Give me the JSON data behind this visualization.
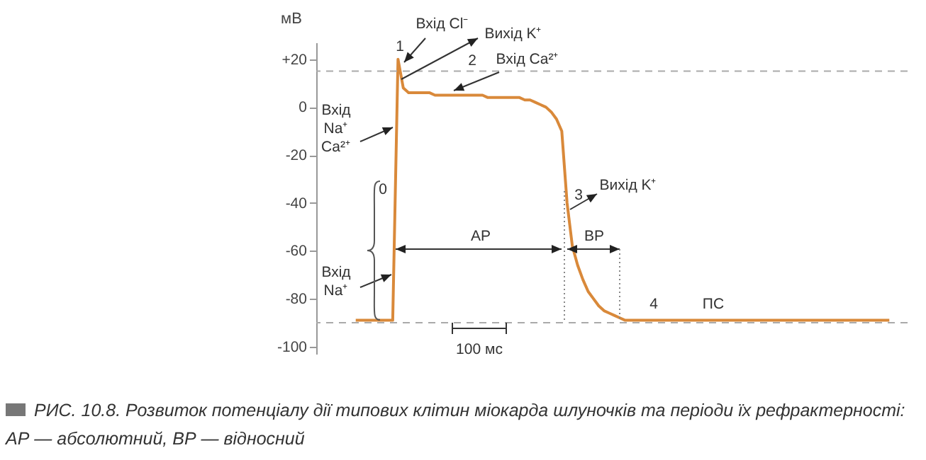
{
  "chart_data": {
    "type": "line",
    "ylabel": "мВ",
    "categories": [
      null,
      null,
      null,
      null,
      null,
      null,
      null,
      null,
      null,
      null,
      null,
      null,
      null,
      null,
      null,
      null,
      null,
      null,
      null,
      null,
      null,
      null,
      null,
      null,
      null,
      null,
      null,
      null,
      null,
      null,
      null,
      null,
      null,
      null,
      null,
      null,
      null,
      null,
      null,
      null,
      null,
      null,
      null,
      null,
      null,
      null,
      null,
      null,
      null,
      null,
      null,
      null,
      null,
      null,
      null,
      null,
      null,
      null,
      null,
      null,
      null,
      null,
      null,
      null,
      null,
      null,
      null,
      null,
      null,
      null,
      null,
      null,
      null,
      null,
      null,
      null,
      null,
      null,
      null,
      null,
      null,
      null,
      null,
      null,
      null,
      null,
      null,
      null,
      null,
      null,
      null,
      null,
      null,
      null,
      null,
      null,
      null,
      null,
      null,
      null,
      null,
      null
    ],
    "series": [
      {
        "color": "#d9893a",
        "values": [
          -89,
          -89,
          -89,
          -89,
          -89,
          -89,
          -89,
          -89,
          20,
          8,
          6,
          6,
          6,
          6,
          6,
          5,
          5,
          5,
          5,
          5,
          5,
          5,
          5,
          5,
          5,
          4,
          4,
          4,
          4,
          4,
          4,
          4,
          3,
          3,
          2,
          1,
          0,
          -2,
          -5,
          -10,
          -40,
          -58,
          -66,
          -72,
          -77,
          -80,
          -83,
          -85,
          -86,
          -87,
          -88,
          -89,
          -89,
          -89,
          -89,
          -89,
          -89,
          -89,
          -89,
          -89,
          -89,
          -89,
          -89,
          -89,
          -89,
          -89,
          -89,
          -89,
          -89,
          -89,
          -89,
          -89,
          -89,
          -89,
          -89,
          -89,
          -89,
          -89,
          -89,
          -89,
          -89,
          -89,
          -89,
          -89,
          -89,
          -89,
          -89,
          -89,
          -89,
          -89,
          -89,
          -89,
          -89,
          -89,
          -89,
          -89,
          -89,
          -89,
          -89,
          -89,
          -89,
          -89
        ]
      }
    ],
    "ylim": [
      -103,
      27
    ],
    "yticks": [
      {
        "value": 20,
        "label": "+20"
      },
      0,
      -20,
      -40,
      -60,
      -80,
      -100
    ],
    "tick_labels": "y",
    "grid": false,
    "legend": false,
    "ref_lines": [
      {
        "axis": "y",
        "value": 15,
        "label": null,
        "color": "#aaaaaa",
        "line_style": "dashed"
      },
      {
        "axis": "y",
        "value": -90,
        "label": null,
        "color": "#aaaaaa",
        "line_style": "dashed"
      }
    ],
    "annotations": [
      "1",
      "Вхід Cl⁻",
      "Вихід K⁺",
      "2",
      "Вхід Ca²⁺",
      "Вхід\nNa⁺\nCa²⁺",
      "Вхід\nNa⁺",
      "0",
      "3",
      "Вихід K⁺",
      "АР",
      "ВР",
      "4",
      "ПС",
      "100 мс",
      "РИС. 10.8. Розвиток потенціалу дії типових клітин міокарда шлуночків та періоди їх рефрактерності: АР — абсолютний, ВР — відносний"
    ]
  }
}
